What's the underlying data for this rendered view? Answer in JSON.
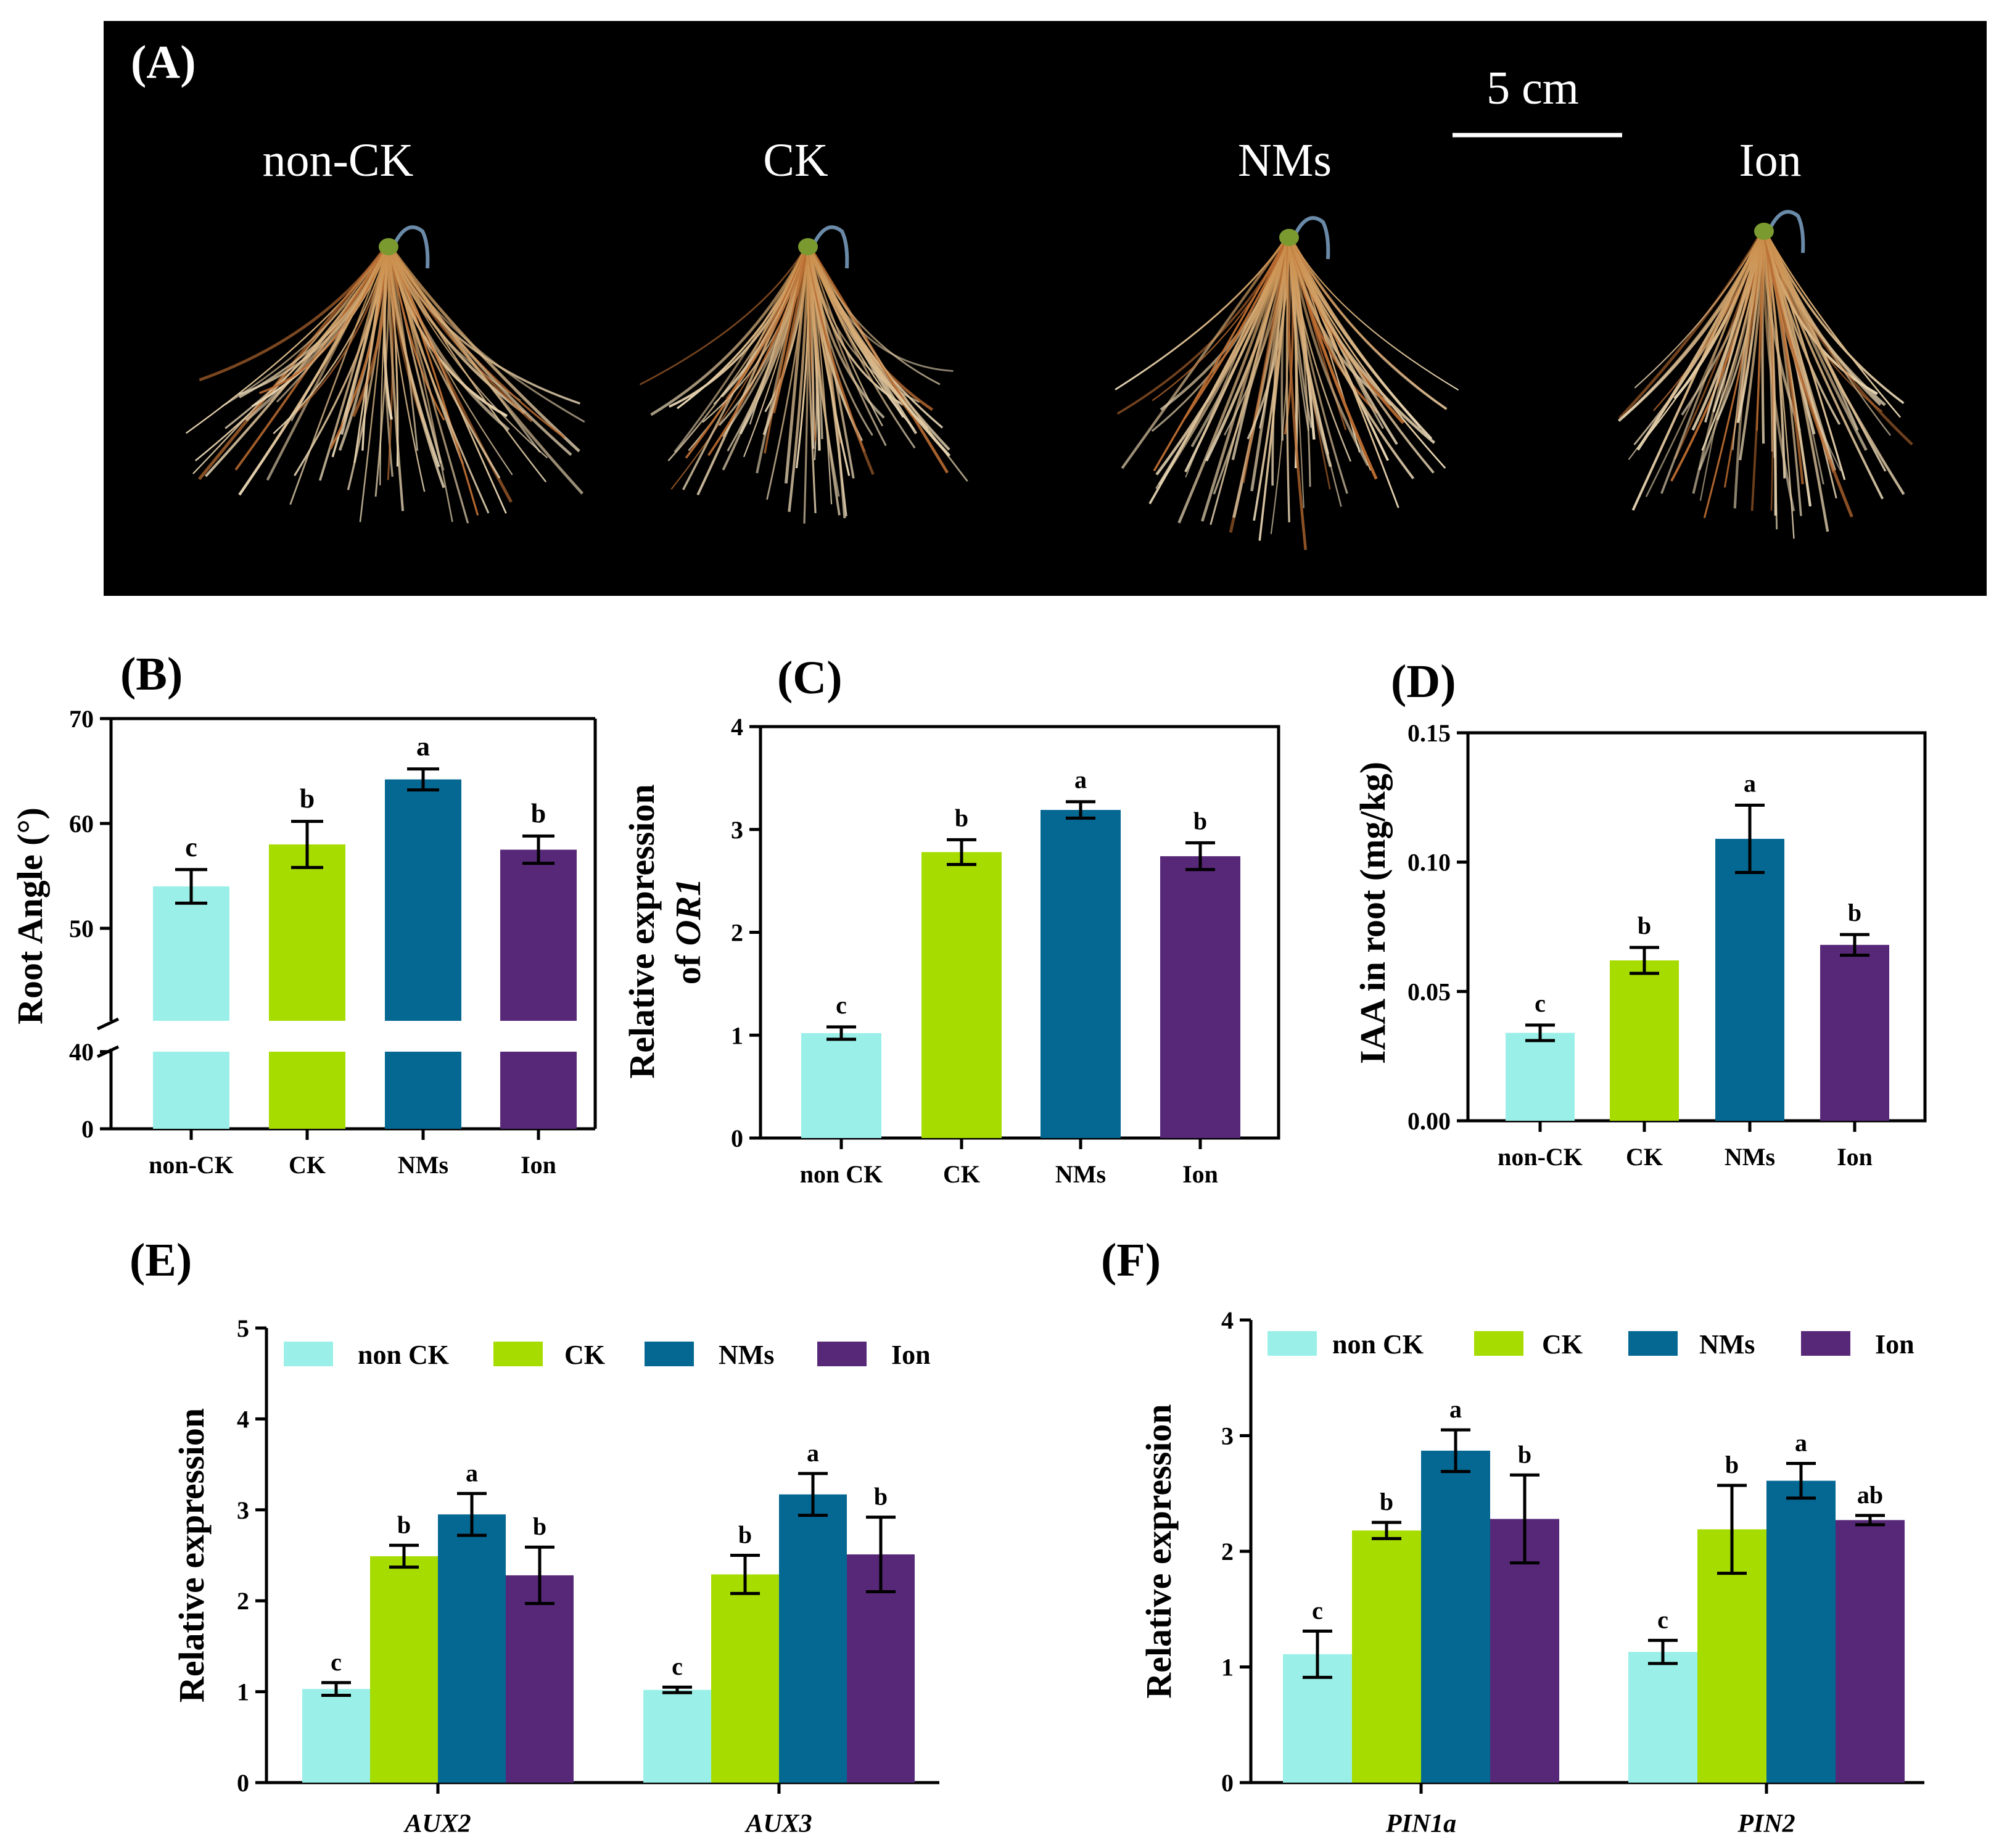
{
  "photo_panel": {
    "label": "(A)",
    "scale_bar": "5 cm",
    "samples": [
      "non-CK",
      "CK",
      "NMs",
      "Ion"
    ]
  },
  "colors": {
    "non_ck": "#9AF0E8",
    "ck": "#A6DC00",
    "nms": "#046893",
    "ion": "#582878"
  },
  "chart_data": [
    {
      "panel": "(B)",
      "type": "bar",
      "categories": [
        "non-CK",
        "CK",
        "NMs",
        "Ion"
      ],
      "values": [
        54,
        58,
        64.2,
        57.5
      ],
      "errors": [
        1.6,
        2.2,
        1.0,
        1.3
      ],
      "significance": [
        "c",
        "b",
        "a",
        "b"
      ],
      "ylabel": "Root Angle (°)",
      "ylim": [
        0,
        70
      ],
      "axis_break": [
        40,
        45
      ],
      "yticks": [
        0,
        40,
        50,
        60,
        70
      ]
    },
    {
      "panel": "(C)",
      "type": "bar",
      "categories": [
        "non CK",
        "CK",
        "NMs",
        "Ion"
      ],
      "values": [
        1.02,
        2.78,
        3.19,
        2.74
      ],
      "errors": [
        0.06,
        0.12,
        0.08,
        0.13
      ],
      "significance": [
        "c",
        "b",
        "a",
        "b"
      ],
      "ylabel_line1": "Relative expression",
      "ylabel_line2_prefix": "of",
      "ylabel_line2_gene": "OR1",
      "ylim": [
        0,
        4
      ],
      "yticks": [
        0,
        1,
        2,
        3,
        4
      ]
    },
    {
      "panel": "(D)",
      "type": "bar",
      "categories": [
        "non-CK",
        "CK",
        "NMs",
        "Ion"
      ],
      "values": [
        0.034,
        0.062,
        0.109,
        0.068
      ],
      "errors": [
        0.003,
        0.005,
        0.013,
        0.004
      ],
      "significance": [
        "c",
        "b",
        "a",
        "b"
      ],
      "ylabel": "IAA in root (mg/kg)",
      "ylim": [
        0,
        0.15
      ],
      "yticks": [
        "0.00",
        "0.05",
        "0.10",
        "0.15"
      ]
    },
    {
      "panel": "(E)",
      "type": "bar",
      "categories": [
        "AUX2",
        "AUX3"
      ],
      "series": [
        {
          "name": "non CK",
          "values": [
            1.03,
            1.02
          ],
          "errors": [
            0.07,
            0.03
          ],
          "significance": [
            "c",
            "c"
          ]
        },
        {
          "name": "CK",
          "values": [
            2.49,
            2.29
          ],
          "errors": [
            0.12,
            0.21
          ],
          "significance": [
            "b",
            "b"
          ]
        },
        {
          "name": "NMs",
          "values": [
            2.95,
            3.17
          ],
          "errors": [
            0.23,
            0.23
          ],
          "significance": [
            "a",
            "a"
          ]
        },
        {
          "name": "Ion",
          "values": [
            2.28,
            2.51
          ],
          "errors": [
            0.31,
            0.41
          ],
          "significance": [
            "b",
            "b"
          ]
        }
      ],
      "ylabel": "Relative expression",
      "ylim": [
        0,
        5
      ],
      "yticks": [
        0,
        1,
        2,
        3,
        4,
        5
      ],
      "legend": "top"
    },
    {
      "panel": "(F)",
      "type": "bar",
      "categories": [
        "PIN1a",
        "PIN2"
      ],
      "series": [
        {
          "name": "non CK",
          "values": [
            1.11,
            1.13
          ],
          "errors": [
            0.2,
            0.1
          ],
          "significance": [
            "c",
            "c"
          ]
        },
        {
          "name": "CK",
          "values": [
            2.18,
            2.19
          ],
          "errors": [
            0.07,
            0.38
          ],
          "significance": [
            "b",
            "b"
          ]
        },
        {
          "name": "NMs",
          "values": [
            2.87,
            2.61
          ],
          "errors": [
            0.18,
            0.15
          ],
          "significance": [
            "a",
            "a"
          ]
        },
        {
          "name": "Ion",
          "values": [
            2.28,
            2.27
          ],
          "errors": [
            0.38,
            0.04
          ],
          "significance": [
            "b",
            "ab"
          ]
        }
      ],
      "ylabel": "Relative expression",
      "ylim": [
        0,
        4
      ],
      "yticks": [
        0,
        1,
        2,
        3,
        4
      ],
      "legend": "top"
    }
  ]
}
